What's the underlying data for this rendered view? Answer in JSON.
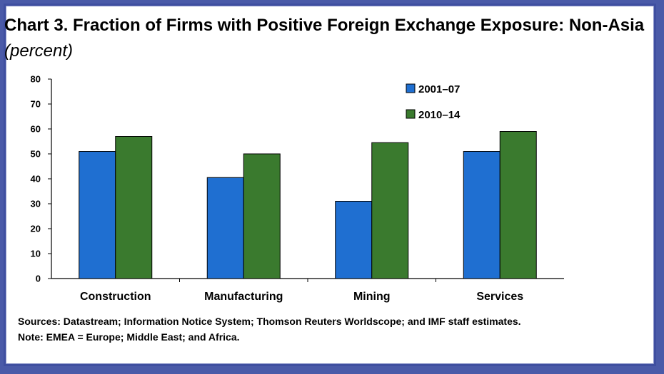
{
  "chart_data": {
    "type": "bar",
    "title": "Chart 3. Fraction of Firms with Positive Foreign Exchange Exposure: Non-Asia",
    "subtitle": "(percent)",
    "categories": [
      "Construction",
      "Manufacturing",
      "Mining",
      "Services"
    ],
    "series": [
      {
        "name": "2001–07",
        "values": [
          51,
          40.5,
          31,
          51
        ],
        "color": "#1f6fd1"
      },
      {
        "name": "2010–14",
        "values": [
          57,
          50,
          54.5,
          59
        ],
        "color": "#3a7a2e"
      }
    ],
    "ylim": [
      0,
      80
    ],
    "yticks": [
      0,
      10,
      20,
      30,
      40,
      50,
      60,
      70,
      80
    ],
    "xlabel": "",
    "ylabel": "",
    "grid": false,
    "legend_position": "top-right"
  },
  "notes": {
    "sources": "Sources: Datastream; Information Notice System; Thomson Reuters Worldscope; and  IMF staff estimates.",
    "note": "Note: EMEA = Europe; Middle East; and Africa."
  },
  "colors": {
    "frame": "#3f4fa0",
    "background_outer": "#4a5aa8"
  }
}
